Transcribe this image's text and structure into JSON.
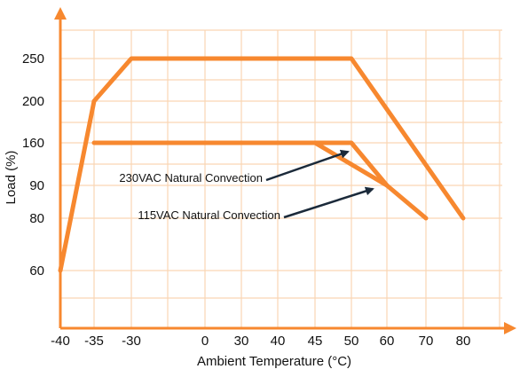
{
  "chart_data": {
    "type": "line",
    "title": "",
    "xlabel": "Ambient Temperature (°C)",
    "ylabel": "Load (%)",
    "x_ticks": [
      "-40",
      "-35",
      "-30",
      "0",
      "30",
      "40",
      "45",
      "50",
      "60",
      "70",
      "80"
    ],
    "y_ticks": [
      "60",
      "80",
      "90",
      "160",
      "200",
      "250"
    ],
    "grid": true,
    "series": [
      {
        "color": "#F7882F",
        "points": [
          [
            "-40",
            "60"
          ],
          [
            "-35",
            "200"
          ],
          [
            "-30",
            "250"
          ],
          [
            "50",
            "250"
          ],
          [
            "80",
            "80"
          ]
        ]
      },
      {
        "color": "#F7882F",
        "points": [
          [
            "-35",
            "160"
          ],
          [
            "45",
            "160"
          ],
          [
            "60",
            "90"
          ],
          [
            "70",
            "80"
          ]
        ]
      },
      {
        "color": "#F7882F",
        "points": [
          [
            "45",
            "160"
          ],
          [
            "50",
            "160"
          ],
          [
            "60",
            "90"
          ]
        ]
      }
    ],
    "annotations": [
      {
        "text": "230VAC Natural Convection",
        "points_to": [
          "50",
          "160"
        ]
      },
      {
        "text": "115VAC Natural Convection",
        "points_to": [
          "60",
          "90"
        ]
      }
    ]
  },
  "colors": {
    "grid": "#F9D5B4",
    "axis": "#F7882F",
    "series": "#F7882F",
    "arrow": "#1B2A3A"
  }
}
